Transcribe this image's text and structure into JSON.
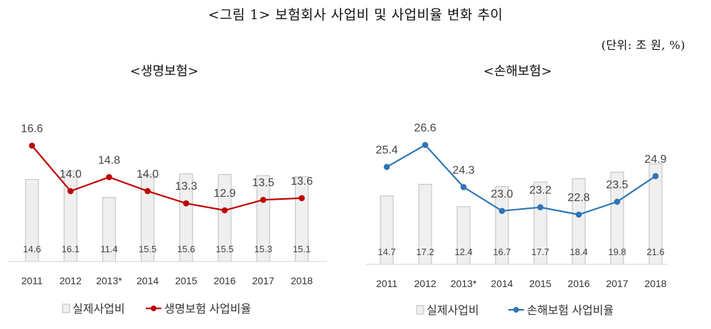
{
  "figure": {
    "title": "<그림 1> 보험회사 사업비 및 사업비율 변화 추이",
    "unit": "(단위: 조 원, %)"
  },
  "chart_data": [
    {
      "type": "bar+line",
      "title": "<생명보험>",
      "categories": [
        "2011",
        "2012",
        "2013*",
        "2014",
        "2015",
        "2016",
        "2017",
        "2018"
      ],
      "series": [
        {
          "name": "실제사업비",
          "kind": "bar",
          "values": [
            14.6,
            16.1,
            11.4,
            15.5,
            15.6,
            15.5,
            15.3,
            15.1
          ]
        },
        {
          "name": "생명보험 사업비율",
          "kind": "line",
          "values": [
            16.6,
            14.0,
            14.8,
            14.0,
            13.3,
            12.9,
            13.5,
            13.6
          ]
        }
      ],
      "colors": {
        "bar_fill": "#efefef",
        "bar_stroke": "#bdbdbd",
        "line": "#c00000",
        "marker": "#c00000",
        "axis": "#d9d9d9"
      },
      "legend_placement": "bottom",
      "grid": false
    },
    {
      "type": "bar+line",
      "title": "<손해보험>",
      "categories": [
        "2011",
        "2012",
        "2013*",
        "2014",
        "2015",
        "2016",
        "2017",
        "2018"
      ],
      "series": [
        {
          "name": "실제사업비",
          "kind": "bar",
          "values": [
            14.7,
            17.2,
            12.4,
            16.7,
            17.7,
            18.4,
            19.8,
            21.6
          ]
        },
        {
          "name": "손해보험 사업비율",
          "kind": "line",
          "values": [
            25.4,
            26.6,
            24.3,
            23.0,
            23.2,
            22.8,
            23.5,
            24.9
          ]
        }
      ],
      "colors": {
        "bar_fill": "#efefef",
        "bar_stroke": "#bdbdbd",
        "line": "#2e75b6",
        "marker": "#2e75b6",
        "axis": "#d9d9d9"
      },
      "legend_placement": "bottom",
      "grid": false
    }
  ]
}
